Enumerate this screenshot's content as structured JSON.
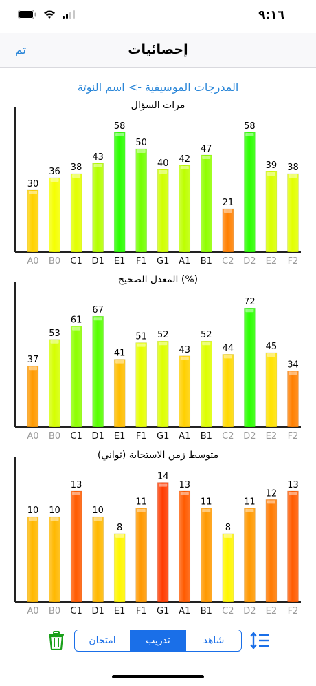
{
  "status": {
    "time": "٩:١٦"
  },
  "nav": {
    "title": "إحصائيات",
    "done": "تم"
  },
  "subtitle": "المدرجات الموسيقية  ->  اسم النوتة",
  "charts": [
    {
      "title": "مرات السؤال"
    },
    {
      "title": "المعدل الصحيح  (%)"
    },
    {
      "title": "متوسط زمن الاستجابة  (ثواني)"
    }
  ],
  "chart_data": [
    {
      "type": "bar",
      "title": "مرات السؤال",
      "categories": [
        "A0",
        "B0",
        "C1",
        "D1",
        "E1",
        "F1",
        "G1",
        "A1",
        "B1",
        "C2",
        "D2",
        "E2",
        "F2"
      ],
      "values": [
        30,
        36,
        38,
        43,
        58,
        50,
        40,
        42,
        47,
        21,
        58,
        39,
        38
      ],
      "ylim": [
        0,
        64
      ]
    },
    {
      "type": "bar",
      "title": "المعدل الصحيح  (%)",
      "categories": [
        "A0",
        "B0",
        "C1",
        "D1",
        "E1",
        "F1",
        "G1",
        "A1",
        "B1",
        "C2",
        "D2",
        "E2",
        "F2"
      ],
      "values": [
        37,
        53,
        61,
        67,
        41,
        51,
        52,
        43,
        52,
        44,
        72,
        45,
        34
      ],
      "ylim": [
        0,
        80
      ]
    },
    {
      "type": "bar",
      "title": "متوسط زمن الاستجابة  (ثواني)",
      "categories": [
        "A0",
        "B0",
        "C1",
        "D1",
        "E1",
        "F1",
        "G1",
        "A1",
        "B1",
        "C2",
        "D2",
        "E2",
        "F2"
      ],
      "values": [
        10,
        10,
        13,
        10,
        8,
        11,
        14,
        13,
        11,
        8,
        11,
        12,
        13
      ],
      "ylim": [
        0,
        15.5
      ]
    }
  ],
  "category_style": [
    "light",
    "light",
    "dark",
    "dark",
    "dark",
    "dark",
    "dark",
    "dark",
    "dark",
    "light",
    "light",
    "light",
    "light"
  ],
  "toolbar": {
    "segments": [
      "امتحان",
      "تدريب",
      "شاهد"
    ],
    "selected": "تدريب",
    "accent": "#1a6fe8"
  },
  "icons": {
    "trash": "trash-icon",
    "sort": "sort-icon"
  },
  "colors": {
    "link": "#2a86d8",
    "trash": "#1aa01a"
  }
}
